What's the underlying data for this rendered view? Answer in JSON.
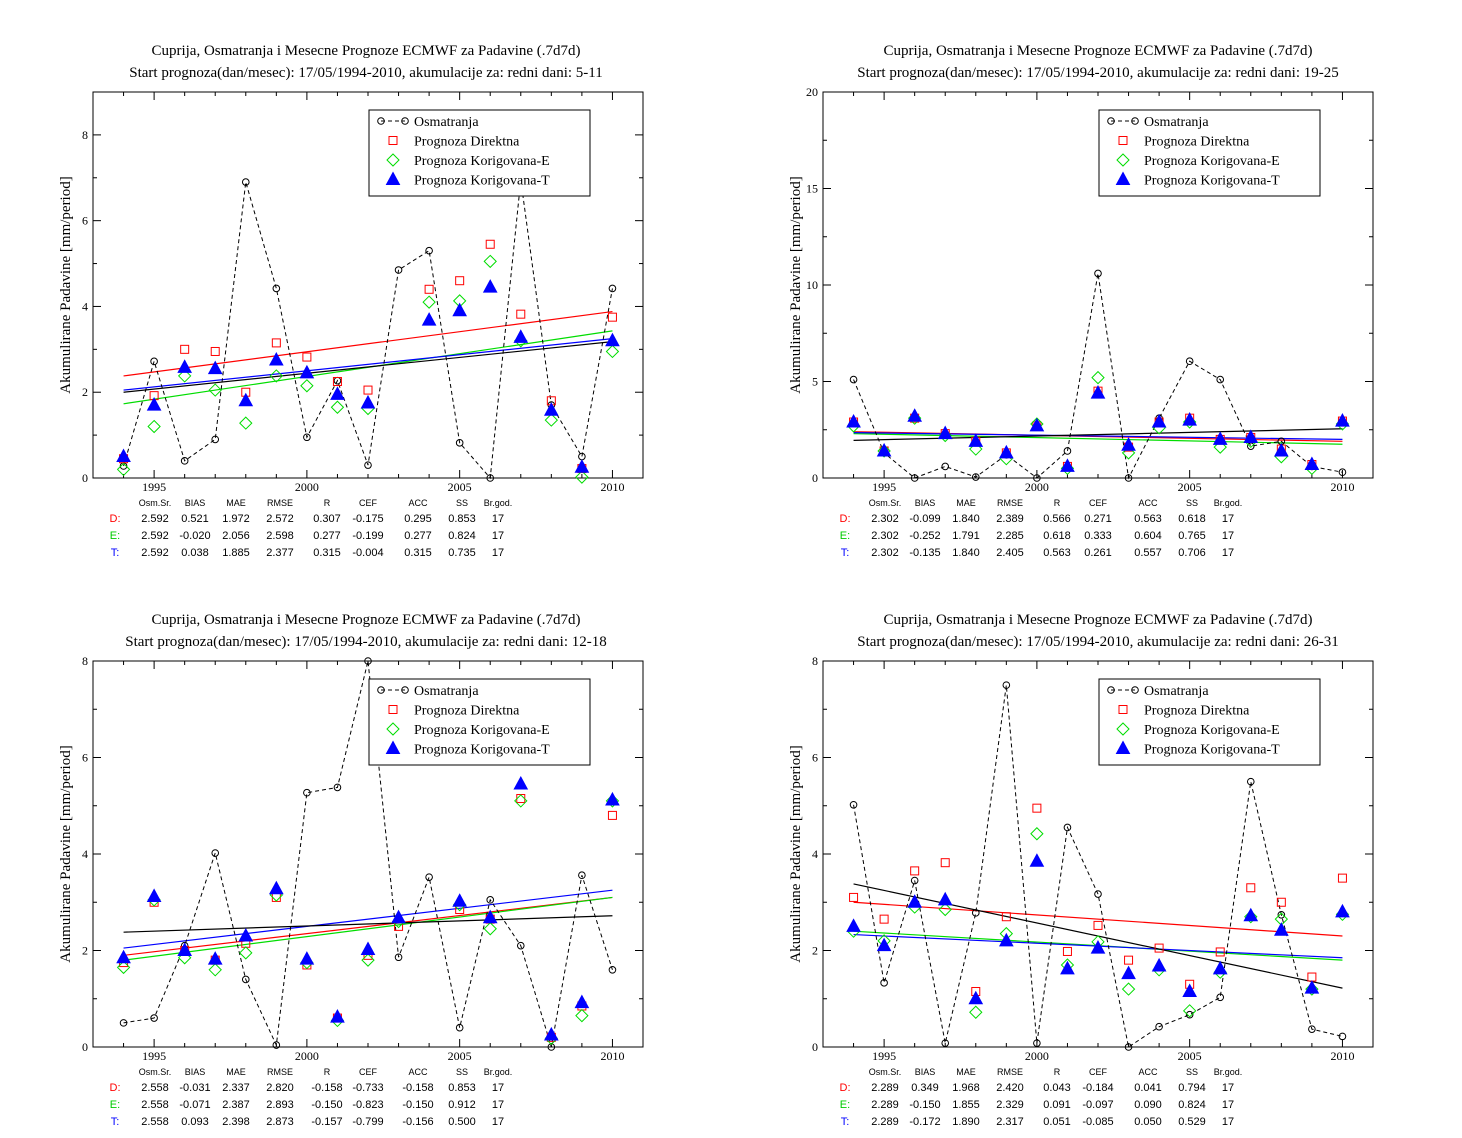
{
  "chart_data": [
    {
      "type": "scatter",
      "title": "Cuprija, Osmatranja i Mesecne Prognoze ECMWF za Padavine (.7d7d)",
      "subtitle": "Start prognoza(dan/mesec): 17/05/1994-2010, akumulacije za: redni dani: 5-11",
      "ylabel": "Akumulirane Padavine [mm/period]",
      "xlim": [
        1993,
        2011
      ],
      "ylim": [
        0,
        9
      ],
      "xticks": [
        1995,
        2000,
        2005,
        2010
      ],
      "yticks": [
        0,
        2,
        4,
        6,
        8
      ],
      "legend_position": "top-right",
      "x": [
        1994,
        1995,
        1996,
        1997,
        1998,
        1999,
        2000,
        2001,
        2002,
        2003,
        2004,
        2005,
        2006,
        2007,
        2008,
        2009,
        2010
      ],
      "series": [
        {
          "name": "Osmatranja",
          "color": "#000000",
          "marker": "circle",
          "values": [
            0.28,
            2.72,
            0.4,
            0.9,
            6.9,
            4.42,
            0.95,
            2.27,
            0.3,
            4.85,
            5.3,
            0.82,
            0.0,
            6.95,
            1.7,
            0.5,
            4.42
          ]
        },
        {
          "name": "Prognoza Direktna",
          "color": "#ff0000",
          "marker": "square",
          "values": [
            0.45,
            1.92,
            3.0,
            2.95,
            2.0,
            3.15,
            2.82,
            2.25,
            2.05,
            null,
            4.4,
            4.6,
            5.45,
            3.82,
            1.8,
            0.22,
            3.75
          ]
        },
        {
          "name": "Prognoza Korigovana-E",
          "color": "#00dd00",
          "marker": "diamond",
          "values": [
            0.2,
            1.2,
            2.38,
            2.05,
            1.28,
            2.38,
            2.15,
            1.65,
            1.62,
            null,
            4.1,
            4.13,
            5.05,
            3.2,
            1.35,
            0.02,
            2.95
          ]
        },
        {
          "name": "Prognoza Korigovana-T",
          "color": "#0000ff",
          "marker": "triangle",
          "values": [
            0.5,
            1.7,
            2.58,
            2.55,
            1.8,
            2.75,
            2.45,
            1.95,
            1.75,
            null,
            3.68,
            3.9,
            4.45,
            3.28,
            1.58,
            0.25,
            3.2
          ]
        }
      ],
      "trend_lines": [
        {
          "color": "#ff0000",
          "start": [
            1994,
            2.38
          ],
          "end": [
            2010,
            3.88
          ]
        },
        {
          "color": "#00dd00",
          "start": [
            1994,
            1.73
          ],
          "end": [
            2010,
            3.43
          ]
        },
        {
          "color": "#0000ff",
          "start": [
            1994,
            2.05
          ],
          "end": [
            2010,
            3.25
          ]
        },
        {
          "color": "#000000",
          "start": [
            1994,
            2.0
          ],
          "end": [
            2010,
            3.18
          ]
        }
      ],
      "stats": {
        "headers": [
          "Osm.Sr.",
          "BIAS",
          "MAE",
          "RMSE",
          "R",
          "CEF",
          "ACC",
          "SS",
          "Br.god."
        ],
        "rows": [
          {
            "label": "D:",
            "color": "#ff0000",
            "values": [
              "2.592",
              "0.521",
              "1.972",
              "2.572",
              "0.307",
              "-0.175",
              "0.295",
              "0.853",
              "17"
            ]
          },
          {
            "label": "E:",
            "color": "#00cc00",
            "values": [
              "2.592",
              "-0.020",
              "2.056",
              "2.598",
              "0.277",
              "-0.199",
              "0.277",
              "0.824",
              "17"
            ]
          },
          {
            "label": "T:",
            "color": "#0000ff",
            "values": [
              "2.592",
              "0.038",
              "1.885",
              "2.377",
              "0.315",
              "-0.004",
              "0.315",
              "0.735",
              "17"
            ]
          }
        ]
      }
    },
    {
      "type": "scatter",
      "title": "Cuprija, Osmatranja i Mesecne Prognoze ECMWF za Padavine (.7d7d)",
      "subtitle": "Start prognoza(dan/mesec): 17/05/1994-2010, akumulacije za: redni dani: 19-25",
      "ylabel": "Akumulirane Padavine [mm/period]",
      "xlim": [
        1993,
        2011
      ],
      "ylim": [
        0,
        20
      ],
      "xticks": [
        1995,
        2000,
        2005,
        2010
      ],
      "yticks": [
        0,
        5,
        10,
        15,
        20
      ],
      "legend_position": "top-right",
      "x": [
        1994,
        1995,
        1996,
        1997,
        1998,
        1999,
        2000,
        2001,
        2002,
        2003,
        2004,
        2005,
        2006,
        2007,
        2008,
        2009,
        2010
      ],
      "series": [
        {
          "name": "Osmatranja",
          "color": "#000000",
          "marker": "circle",
          "values": [
            5.1,
            1.3,
            0.0,
            0.6,
            0.05,
            1.2,
            0.0,
            1.4,
            10.6,
            0.0,
            3.1,
            6.05,
            5.1,
            1.65,
            1.9,
            0.6,
            0.3
          ]
        },
        {
          "name": "Prognoza Direktna",
          "color": "#ff0000",
          "marker": "square",
          "values": [
            2.9,
            1.4,
            3.1,
            2.3,
            1.9,
            1.3,
            2.7,
            0.6,
            4.5,
            1.6,
            2.9,
            3.1,
            2.0,
            2.1,
            1.5,
            0.7,
            2.95
          ]
        },
        {
          "name": "Prognoza Korigovana-E",
          "color": "#00dd00",
          "marker": "diamond",
          "values": [
            2.7,
            1.4,
            3.1,
            2.2,
            1.5,
            1.0,
            2.8,
            0.5,
            5.2,
            1.3,
            2.6,
            2.9,
            1.6,
            1.9,
            1.1,
            0.5,
            2.8
          ]
        },
        {
          "name": "Prognoza Korigovana-T",
          "color": "#0000ff",
          "marker": "triangle",
          "values": [
            2.9,
            1.4,
            3.2,
            2.3,
            1.9,
            1.3,
            2.7,
            0.6,
            4.4,
            1.7,
            2.9,
            3.0,
            2.0,
            2.1,
            1.4,
            0.7,
            2.95
          ]
        }
      ],
      "trend_lines": [
        {
          "color": "#ff0000",
          "start": [
            1994,
            2.4
          ],
          "end": [
            2010,
            1.9
          ]
        },
        {
          "color": "#00dd00",
          "start": [
            1994,
            2.3
          ],
          "end": [
            2010,
            1.75
          ]
        },
        {
          "color": "#0000ff",
          "start": [
            1994,
            2.35
          ],
          "end": [
            2010,
            2.0
          ]
        },
        {
          "color": "#000000",
          "start": [
            1994,
            1.95
          ],
          "end": [
            2010,
            2.55
          ]
        }
      ],
      "stats": {
        "headers": [
          "Osm.Sr.",
          "BIAS",
          "MAE",
          "RMSE",
          "R",
          "CEF",
          "ACC",
          "SS",
          "Br.god."
        ],
        "rows": [
          {
            "label": "D:",
            "color": "#ff0000",
            "values": [
              "2.302",
              "-0.099",
              "1.840",
              "2.389",
              "0.566",
              "0.271",
              "0.563",
              "0.618",
              "17"
            ]
          },
          {
            "label": "E:",
            "color": "#00cc00",
            "values": [
              "2.302",
              "-0.252",
              "1.791",
              "2.285",
              "0.618",
              "0.333",
              "0.604",
              "0.765",
              "17"
            ]
          },
          {
            "label": "T:",
            "color": "#0000ff",
            "values": [
              "2.302",
              "-0.135",
              "1.840",
              "2.405",
              "0.563",
              "0.261",
              "0.557",
              "0.706",
              "17"
            ]
          }
        ]
      }
    },
    {
      "type": "scatter",
      "title": "Cuprija, Osmatranja i Mesecne Prognoze ECMWF za Padavine (.7d7d)",
      "subtitle": "Start prognoza(dan/mesec): 17/05/1994-2010, akumulacije za: redni dani: 12-18",
      "ylabel": "Akumulirane Padavine [mm/period]",
      "xlim": [
        1993,
        2011
      ],
      "ylim": [
        0,
        8
      ],
      "xticks": [
        1995,
        2000,
        2005,
        2010
      ],
      "yticks": [
        0,
        2,
        4,
        6,
        8
      ],
      "legend_position": "top-right",
      "x": [
        1994,
        1995,
        1996,
        1997,
        1998,
        1999,
        2000,
        2001,
        2002,
        2003,
        2004,
        2005,
        2006,
        2007,
        2008,
        2009,
        2010
      ],
      "series": [
        {
          "name": "Osmatranja",
          "color": "#000000",
          "marker": "circle",
          "values": [
            0.5,
            0.6,
            2.1,
            4.02,
            1.4,
            0.04,
            5.27,
            5.38,
            8.0,
            1.86,
            3.52,
            0.4,
            3.05,
            2.1,
            0.0,
            3.56,
            1.6
          ]
        },
        {
          "name": "Prognoza Direktna",
          "color": "#ff0000",
          "marker": "square",
          "values": [
            1.75,
            3.0,
            2.0,
            1.8,
            2.15,
            3.1,
            1.7,
            0.6,
            1.9,
            2.5,
            null,
            2.85,
            2.65,
            5.15,
            0.2,
            0.85,
            4.8
          ]
        },
        {
          "name": "Prognoza Korigovana-E",
          "color": "#00dd00",
          "marker": "diamond",
          "values": [
            1.65,
            3.05,
            1.85,
            1.6,
            1.95,
            3.15,
            1.75,
            0.55,
            1.8,
            2.6,
            null,
            2.95,
            2.45,
            5.1,
            0.18,
            0.65,
            5.1
          ]
        },
        {
          "name": "Prognoza Korigovana-T",
          "color": "#0000ff",
          "marker": "triangle",
          "values": [
            1.85,
            3.12,
            2.0,
            1.82,
            2.3,
            3.28,
            1.82,
            0.62,
            2.02,
            2.68,
            null,
            3.02,
            2.68,
            5.45,
            0.25,
            0.92,
            5.12
          ]
        }
      ],
      "trend_lines": [
        {
          "color": "#ff0000",
          "start": [
            1994,
            1.9
          ],
          "end": [
            2010,
            3.1
          ]
        },
        {
          "color": "#00dd00",
          "start": [
            1994,
            1.8
          ],
          "end": [
            2010,
            3.1
          ]
        },
        {
          "color": "#0000ff",
          "start": [
            1994,
            2.05
          ],
          "end": [
            2010,
            3.25
          ]
        },
        {
          "color": "#000000",
          "start": [
            1994,
            2.38
          ],
          "end": [
            2010,
            2.72
          ]
        }
      ],
      "stats": {
        "headers": [
          "Osm.Sr.",
          "BIAS",
          "MAE",
          "RMSE",
          "R",
          "CEF",
          "ACC",
          "SS",
          "Br.god."
        ],
        "rows": [
          {
            "label": "D:",
            "color": "#ff0000",
            "values": [
              "2.558",
              "-0.031",
              "2.337",
              "2.820",
              "-0.158",
              "-0.733",
              "-0.158",
              "0.853",
              "17"
            ]
          },
          {
            "label": "E:",
            "color": "#00cc00",
            "values": [
              "2.558",
              "-0.071",
              "2.387",
              "2.893",
              "-0.150",
              "-0.823",
              "-0.150",
              "0.912",
              "17"
            ]
          },
          {
            "label": "T:",
            "color": "#0000ff",
            "values": [
              "2.558",
              "0.093",
              "2.398",
              "2.873",
              "-0.157",
              "-0.799",
              "-0.156",
              "0.500",
              "17"
            ]
          }
        ]
      }
    },
    {
      "type": "scatter",
      "title": "Cuprija, Osmatranja i Mesecne Prognoze ECMWF za Padavine (.7d7d)",
      "subtitle": "Start prognoza(dan/mesec): 17/05/1994-2010, akumulacije za: redni dani: 26-31",
      "ylabel": "Akumulirane Padavine [mm/period]",
      "xlim": [
        1993,
        2011
      ],
      "ylim": [
        0,
        8
      ],
      "xticks": [
        1995,
        2000,
        2005,
        2010
      ],
      "yticks": [
        0,
        2,
        4,
        6,
        8
      ],
      "legend_position": "top-right",
      "x": [
        1994,
        1995,
        1996,
        1997,
        1998,
        1999,
        2000,
        2001,
        2002,
        2003,
        2004,
        2005,
        2006,
        2007,
        2008,
        2009,
        2010
      ],
      "series": [
        {
          "name": "Osmatranja",
          "color": "#000000",
          "marker": "circle",
          "values": [
            5.02,
            1.33,
            3.45,
            0.08,
            2.78,
            7.5,
            0.08,
            4.55,
            3.17,
            0.0,
            0.42,
            0.67,
            1.03,
            5.5,
            2.74,
            0.37,
            0.22
          ]
        },
        {
          "name": "Prognoza Direktna",
          "color": "#ff0000",
          "marker": "square",
          "values": [
            3.1,
            2.65,
            3.65,
            3.82,
            1.15,
            2.7,
            4.95,
            1.98,
            2.52,
            1.8,
            2.05,
            1.3,
            1.97,
            3.3,
            3.0,
            1.45,
            3.5
          ]
        },
        {
          "name": "Prognoza Korigovana-E",
          "color": "#00dd00",
          "marker": "diamond",
          "values": [
            2.4,
            2.2,
            2.9,
            2.85,
            0.72,
            2.35,
            4.42,
            1.7,
            2.18,
            1.2,
            1.6,
            0.75,
            1.55,
            2.7,
            2.65,
            1.2,
            2.75
          ]
        },
        {
          "name": "Prognoza Korigovana-T",
          "color": "#0000ff",
          "marker": "triangle",
          "values": [
            2.5,
            2.1,
            3.0,
            3.05,
            1.0,
            2.2,
            3.85,
            1.62,
            2.05,
            1.52,
            1.68,
            1.15,
            1.62,
            2.72,
            2.42,
            1.22,
            2.8
          ]
        }
      ],
      "trend_lines": [
        {
          "color": "#ff0000",
          "start": [
            1994,
            3.0
          ],
          "end": [
            2010,
            2.3
          ]
        },
        {
          "color": "#00dd00",
          "start": [
            1994,
            2.4
          ],
          "end": [
            2010,
            1.8
          ]
        },
        {
          "color": "#0000ff",
          "start": [
            1994,
            2.33
          ],
          "end": [
            2010,
            1.85
          ]
        },
        {
          "color": "#000000",
          "start": [
            1994,
            3.38
          ],
          "end": [
            2010,
            1.22
          ]
        }
      ],
      "stats": {
        "headers": [
          "Osm.Sr.",
          "BIAS",
          "MAE",
          "RMSE",
          "R",
          "CEF",
          "ACC",
          "SS",
          "Br.god."
        ],
        "rows": [
          {
            "label": "D:",
            "color": "#ff0000",
            "values": [
              "2.289",
              "0.349",
              "1.968",
              "2.420",
              "0.043",
              "-0.184",
              "0.041",
              "0.794",
              "17"
            ]
          },
          {
            "label": "E:",
            "color": "#00cc00",
            "values": [
              "2.289",
              "-0.150",
              "1.855",
              "2.329",
              "0.091",
              "-0.097",
              "0.090",
              "0.824",
              "17"
            ]
          },
          {
            "label": "T:",
            "color": "#0000ff",
            "values": [
              "2.289",
              "-0.172",
              "1.890",
              "2.317",
              "0.051",
              "-0.085",
              "0.050",
              "0.529",
              "17"
            ]
          }
        ]
      }
    }
  ]
}
